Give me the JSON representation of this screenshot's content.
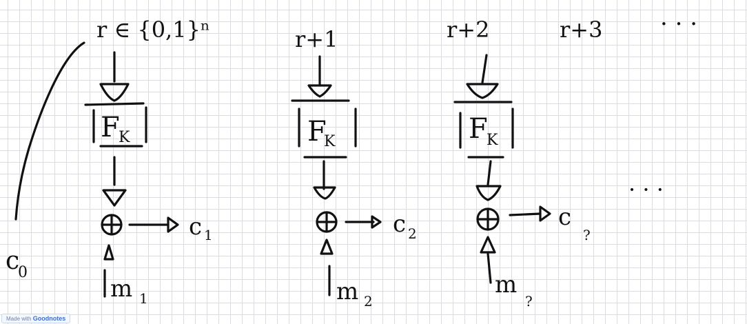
{
  "inputs": [
    "r ∈ {0,1}ⁿ",
    "r+1",
    "r+2",
    "r+3"
  ],
  "input_continuation": "· · ·",
  "block_label": "F",
  "block_subscript": "K",
  "ciphertexts": [
    "c",
    "c",
    "c"
  ],
  "ciphertext_subscripts": [
    "1",
    "2",
    "?"
  ],
  "messages": [
    "m",
    "m",
    "m"
  ],
  "message_subscripts": [
    "1",
    "2",
    "?"
  ],
  "initial_label": "c",
  "initial_subscript": "0",
  "row_continuation": "· · ·",
  "watermark": {
    "prefix": "Made with",
    "brand": "Goodnotes"
  }
}
